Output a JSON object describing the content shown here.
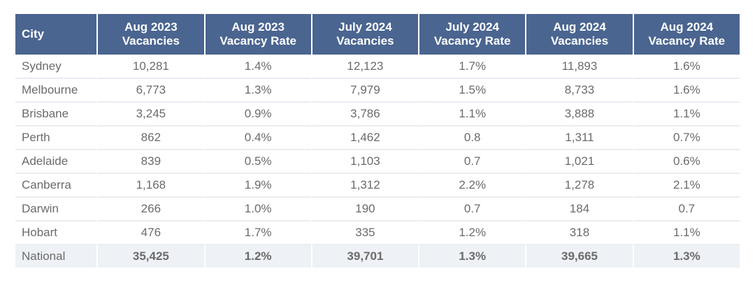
{
  "table": {
    "headers": [
      {
        "line1": "City",
        "line2": ""
      },
      {
        "line1": "Aug 2023",
        "line2": "Vacancies"
      },
      {
        "line1": "Aug 2023",
        "line2": "Vacancy Rate"
      },
      {
        "line1": "July 2024",
        "line2": "Vacancies"
      },
      {
        "line1": "July 2024",
        "line2": "Vacancy Rate"
      },
      {
        "line1": "Aug 2024",
        "line2": "Vacancies"
      },
      {
        "line1": "Aug 2024",
        "line2": "Vacancy Rate"
      }
    ],
    "rows": [
      [
        "Sydney",
        "10,281",
        "1.4%",
        "12,123",
        "1.7%",
        "11,893",
        "1.6%"
      ],
      [
        "Melbourne",
        "6,773",
        "1.3%",
        "7,979",
        "1.5%",
        "8,733",
        "1.6%"
      ],
      [
        "Brisbane",
        "3,245",
        "0.9%",
        "3,786",
        "1.1%",
        "3,888",
        "1.1%"
      ],
      [
        "Perth",
        "862",
        "0.4%",
        "1,462",
        "0.8",
        "1,311",
        "0.7%"
      ],
      [
        "Adelaide",
        "839",
        "0.5%",
        "1,103",
        "0.7",
        "1,021",
        "0.6%"
      ],
      [
        "Canberra",
        "1,168",
        "1.9%",
        "1,312",
        "2.2%",
        "1,278",
        "2.1%"
      ],
      [
        "Darwin",
        "266",
        "1.0%",
        "190",
        "0.7",
        "184",
        "0.7"
      ],
      [
        "Hobart",
        "476",
        "1.7%",
        "335",
        "1.2%",
        "318",
        "1.1%"
      ]
    ],
    "total": [
      "National",
      "35,425",
      "1.2%",
      "39,701",
      "1.3%",
      "39,665",
      "1.3%"
    ]
  },
  "colors": {
    "header_bg": "#4a6590",
    "header_text": "#ffffff",
    "body_text": "#6b6b6b",
    "total_row_bg": "#eef1f5"
  }
}
